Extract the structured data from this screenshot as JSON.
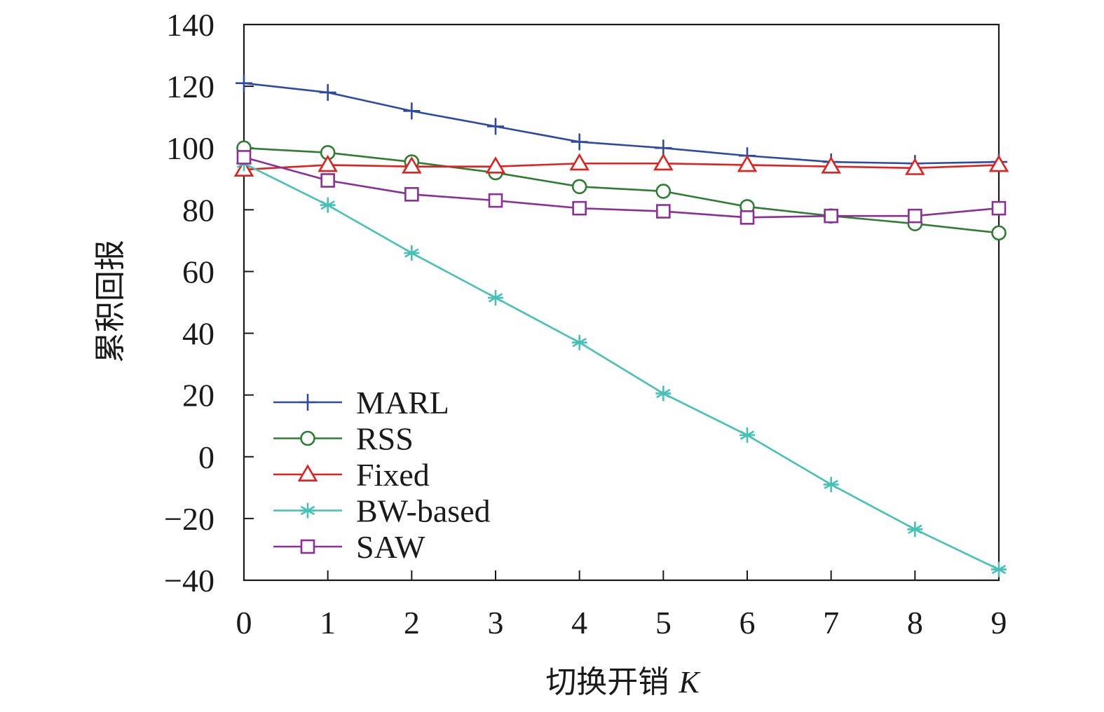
{
  "chart_data": {
    "type": "line",
    "xlabel": "切换开销",
    "xlabel_var": "K",
    "ylabel": "累积回报",
    "x": [
      0,
      1,
      2,
      3,
      4,
      5,
      6,
      7,
      8,
      9
    ],
    "xlim": [
      0,
      9
    ],
    "ylim": [
      -40,
      140
    ],
    "yticks": [
      -40,
      -20,
      0,
      20,
      40,
      60,
      80,
      100,
      120,
      140
    ],
    "ytick_labels": [
      "−40",
      "−20",
      "0",
      "20",
      "40",
      "60",
      "80",
      "100",
      "120",
      "140"
    ],
    "xticks": [
      0,
      1,
      2,
      3,
      4,
      5,
      6,
      7,
      8,
      9
    ],
    "xtick_labels": [
      "0",
      "1",
      "2",
      "3",
      "4",
      "5",
      "6",
      "7",
      "8",
      "9"
    ],
    "grid": false,
    "legend_position": "lower-left",
    "series": [
      {
        "name": "MARL",
        "color": "#2e4aa3",
        "marker": "plus",
        "values": [
          121,
          118,
          112,
          107,
          102,
          100,
          97.5,
          95.5,
          95,
          95.5
        ]
      },
      {
        "name": "RSS",
        "color": "#2e7d32",
        "marker": "circle",
        "values": [
          100,
          98.5,
          95.5,
          92,
          87.5,
          86,
          81,
          78,
          75.5,
          72.5
        ]
      },
      {
        "name": "Fixed",
        "color": "#e0211f",
        "marker": "triangle",
        "values": [
          93,
          94.5,
          94,
          94,
          95,
          95,
          94.5,
          94,
          93.5,
          94.5
        ]
      },
      {
        "name": "BW-based",
        "color": "#45c1b5",
        "marker": "asterisk",
        "values": [
          95,
          81.5,
          66,
          51.5,
          37,
          20.5,
          7,
          -9,
          -23.5,
          -36.5
        ]
      },
      {
        "name": "SAW",
        "color": "#8b2f96",
        "marker": "square",
        "values": [
          97,
          89.5,
          85,
          83,
          80.5,
          79.5,
          77.5,
          78,
          78,
          80.5
        ]
      }
    ]
  }
}
